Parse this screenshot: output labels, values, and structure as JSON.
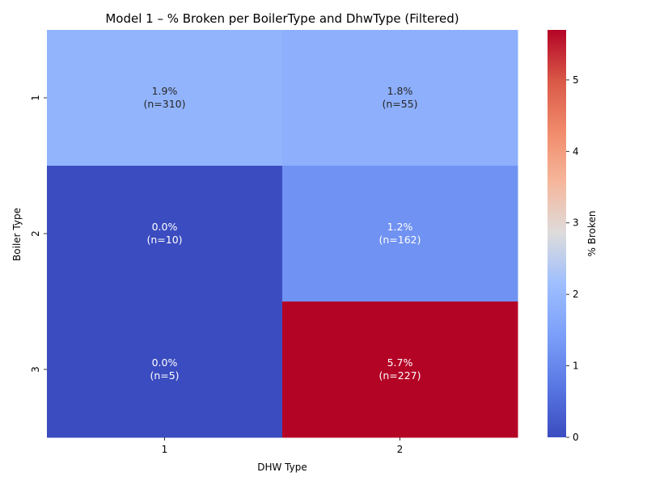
{
  "chart_data": {
    "type": "heatmap",
    "title": "Model 1 – % Broken per BoilerType and DhwType (Filtered)",
    "xlabel": "DHW Type",
    "ylabel": "Boiler Type",
    "x_categories": [
      "1",
      "2"
    ],
    "y_categories": [
      "1",
      "2",
      "3"
    ],
    "values": [
      [
        1.9,
        1.8
      ],
      [
        0.0,
        1.2
      ],
      [
        0.0,
        5.7
      ]
    ],
    "counts": [
      [
        310,
        55
      ],
      [
        10,
        162
      ],
      [
        5,
        227
      ]
    ],
    "cell_labels": [
      [
        "1.9%",
        "1.8%"
      ],
      [
        "0.0%",
        "1.2%"
      ],
      [
        "0.0%",
        "5.7%"
      ]
    ],
    "count_labels": [
      [
        "(n=310)",
        "(n=55)"
      ],
      [
        "(n=10)",
        "(n=162)"
      ],
      [
        "(n=5)",
        "(n=227)"
      ]
    ],
    "colormap": "coolwarm",
    "colorbar": {
      "label": "% Broken",
      "range": [
        0,
        5.7
      ],
      "ticks": [
        "0",
        "1",
        "2",
        "3",
        "4",
        "5"
      ],
      "tick_values": [
        0,
        1,
        2,
        3,
        4,
        5
      ]
    },
    "grid": false,
    "legend": "colorbar-right"
  }
}
